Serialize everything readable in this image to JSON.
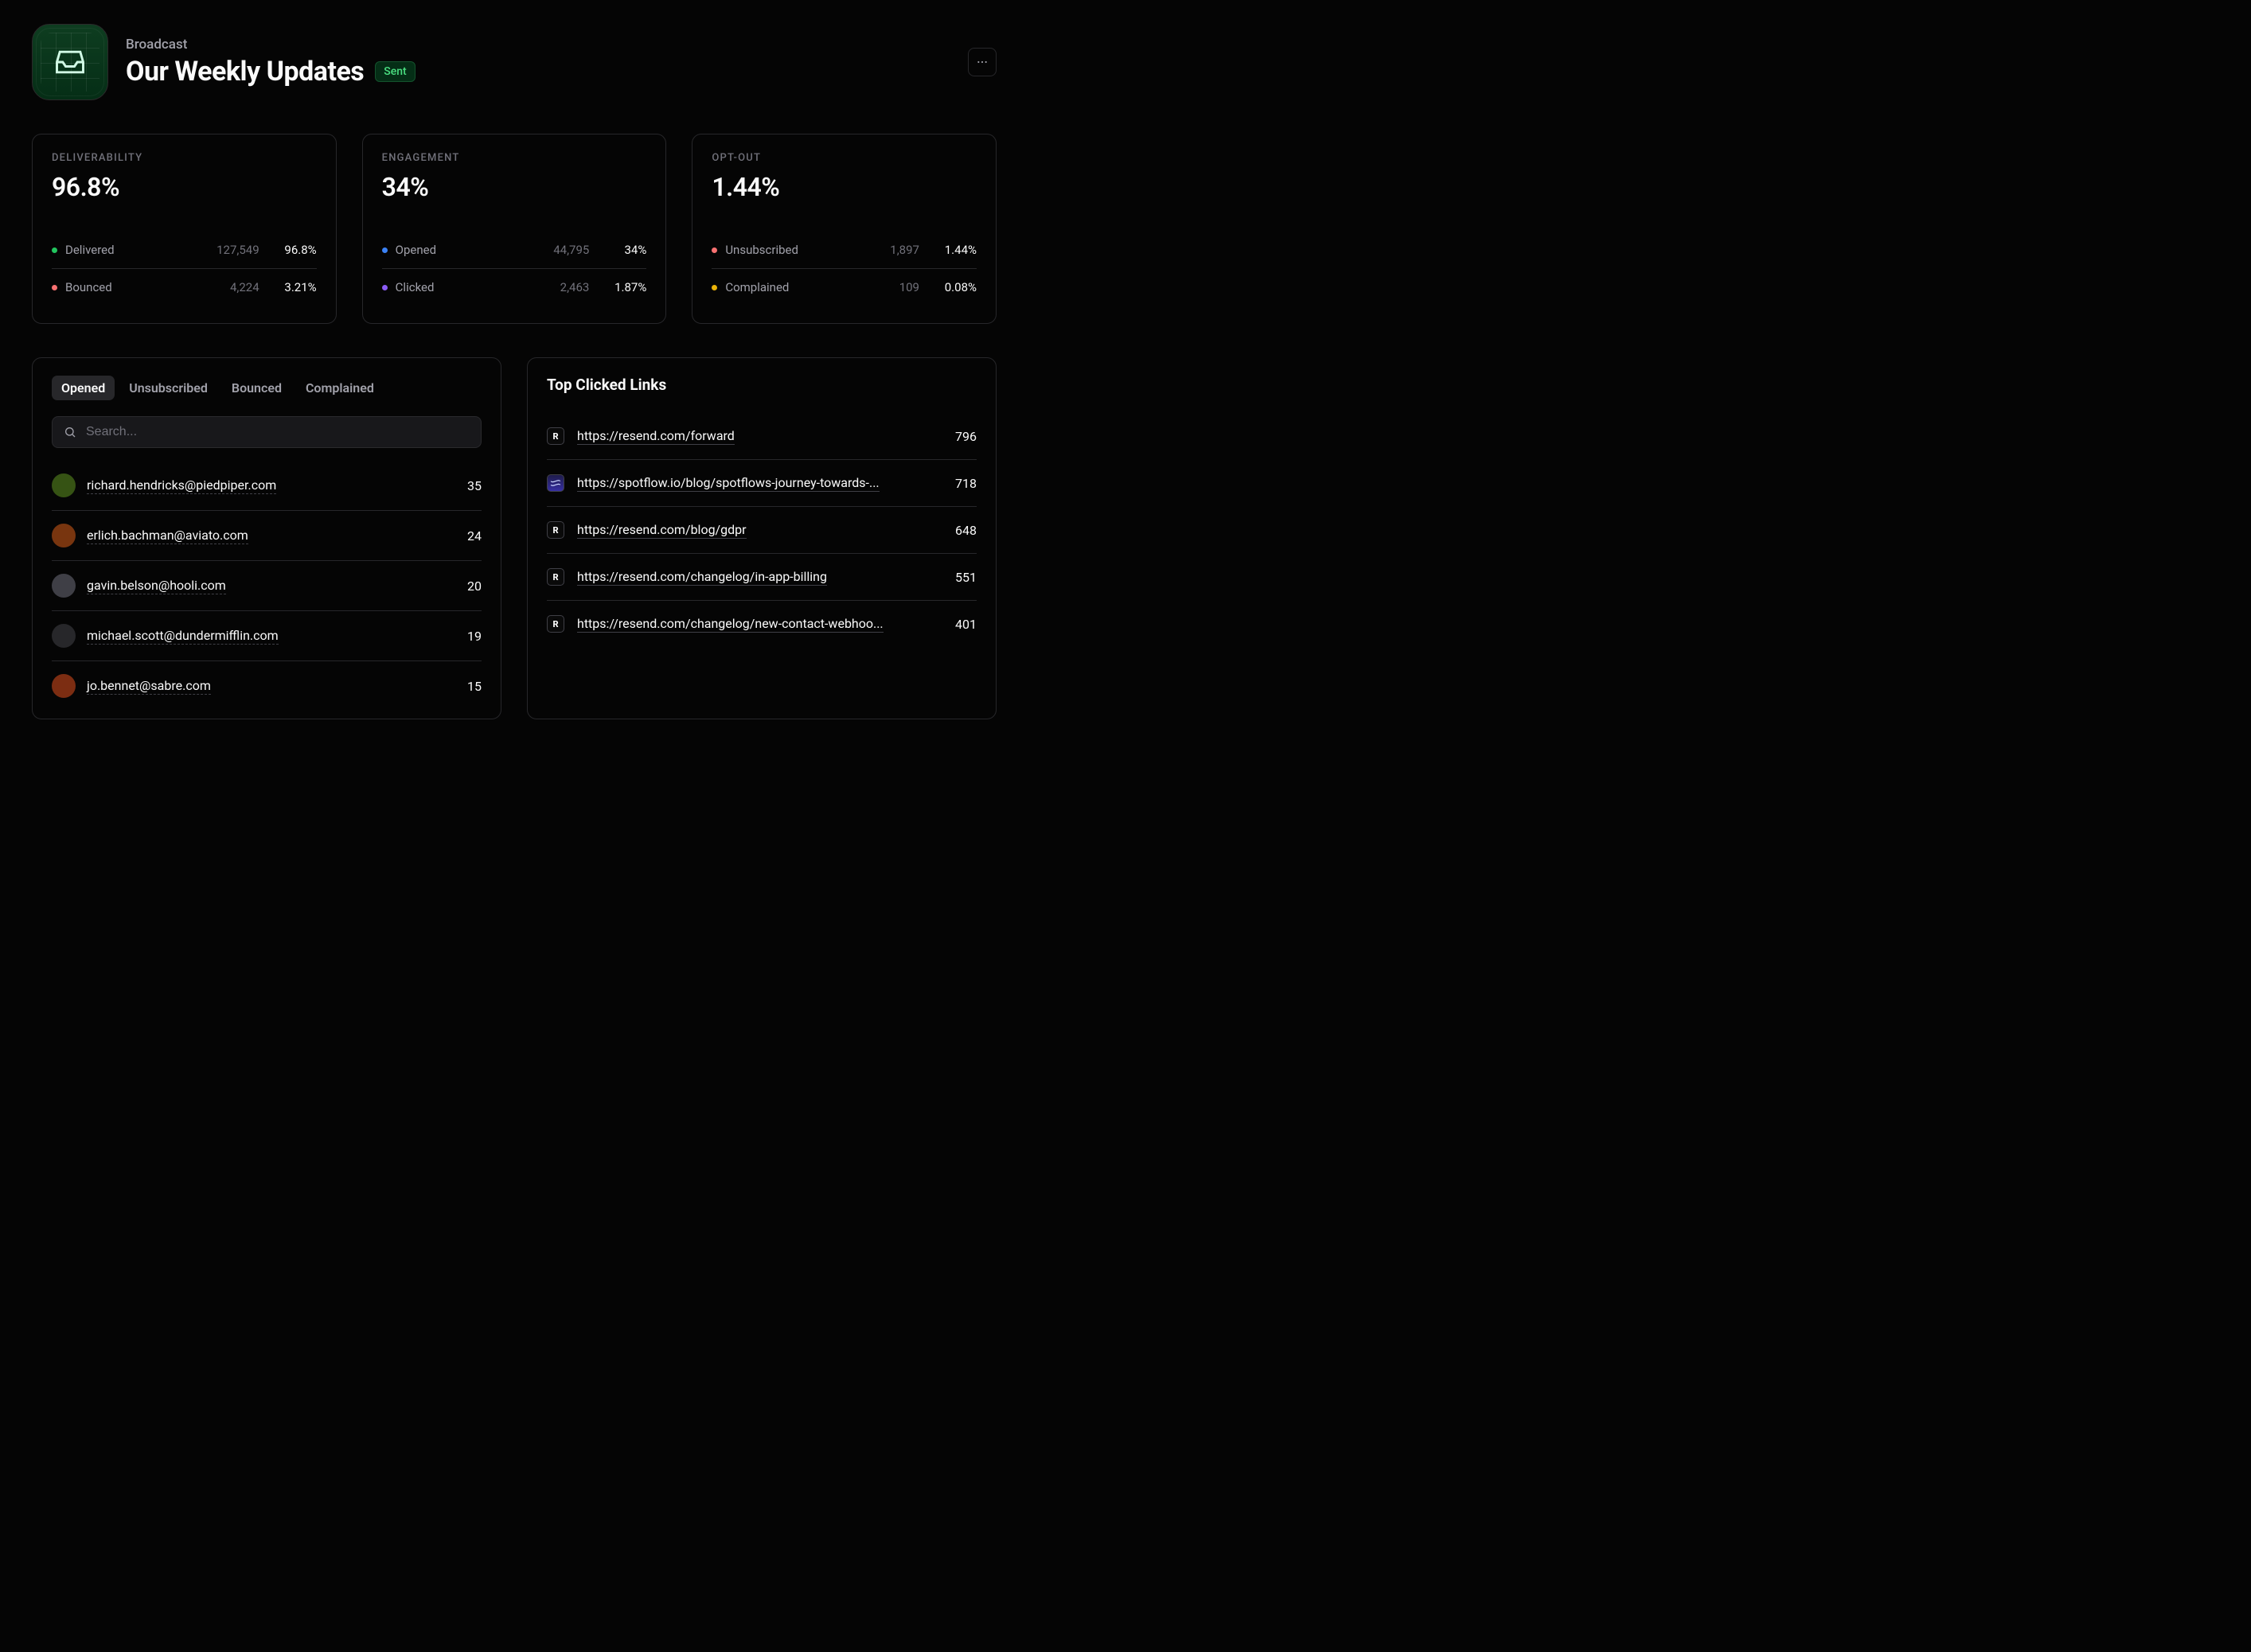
{
  "header": {
    "eyebrow": "Broadcast",
    "title": "Our Weekly Updates",
    "status": "Sent"
  },
  "colors": {
    "dot_green": "#22c55e",
    "dot_red": "#f87171",
    "dot_blue": "#3b82f6",
    "dot_purple": "#8b5cf6",
    "dot_yellow": "#eab308"
  },
  "stat_cards": [
    {
      "label": "DELIVERABILITY",
      "value": "96.8%",
      "rows": [
        {
          "dot": "#22c55e",
          "label": "Delivered",
          "count": "127,549",
          "pct": "96.8%"
        },
        {
          "dot": "#f87171",
          "label": "Bounced",
          "count": "4,224",
          "pct": "3.21%"
        }
      ]
    },
    {
      "label": "ENGAGEMENT",
      "value": "34%",
      "rows": [
        {
          "dot": "#3b82f6",
          "label": "Opened",
          "count": "44,795",
          "pct": "34%"
        },
        {
          "dot": "#8b5cf6",
          "label": "Clicked",
          "count": "2,463",
          "pct": "1.87%"
        }
      ]
    },
    {
      "label": "OPT-OUT",
      "value": "1.44%",
      "rows": [
        {
          "dot": "#f87171",
          "label": "Unsubscribed",
          "count": "1,897",
          "pct": "1.44%"
        },
        {
          "dot": "#eab308",
          "label": "Complained",
          "count": "109",
          "pct": "0.08%"
        }
      ]
    }
  ],
  "recipients": {
    "tabs": [
      "Opened",
      "Unsubscribed",
      "Bounced",
      "Complained"
    ],
    "active_tab": 0,
    "search_placeholder": "Search...",
    "rows": [
      {
        "email": "richard.hendricks@piedpiper.com",
        "count": "35",
        "avatar_bg": "#365314"
      },
      {
        "email": "erlich.bachman@aviato.com",
        "count": "24",
        "avatar_bg": "#78350f"
      },
      {
        "email": "gavin.belson@hooli.com",
        "count": "20",
        "avatar_bg": "#3f3f46"
      },
      {
        "email": "michael.scott@dundermifflin.com",
        "count": "19",
        "avatar_bg": "#27272a"
      },
      {
        "email": "jo.bennet@sabre.com",
        "count": "15",
        "avatar_bg": "#7c2d12"
      }
    ]
  },
  "links": {
    "title": "Top Clicked Links",
    "rows": [
      {
        "favicon": "resend",
        "url": "https://resend.com/forward",
        "count": "796"
      },
      {
        "favicon": "spotflow",
        "url": "https://spotflow.io/blog/spotflows-journey-towards-...",
        "count": "718"
      },
      {
        "favicon": "resend",
        "url": "https://resend.com/blog/gdpr",
        "count": "648"
      },
      {
        "favicon": "resend",
        "url": "https://resend.com/changelog/in-app-billing",
        "count": "551"
      },
      {
        "favicon": "resend",
        "url": "https://resend.com/changelog/new-contact-webhoo...",
        "count": "401"
      }
    ]
  }
}
